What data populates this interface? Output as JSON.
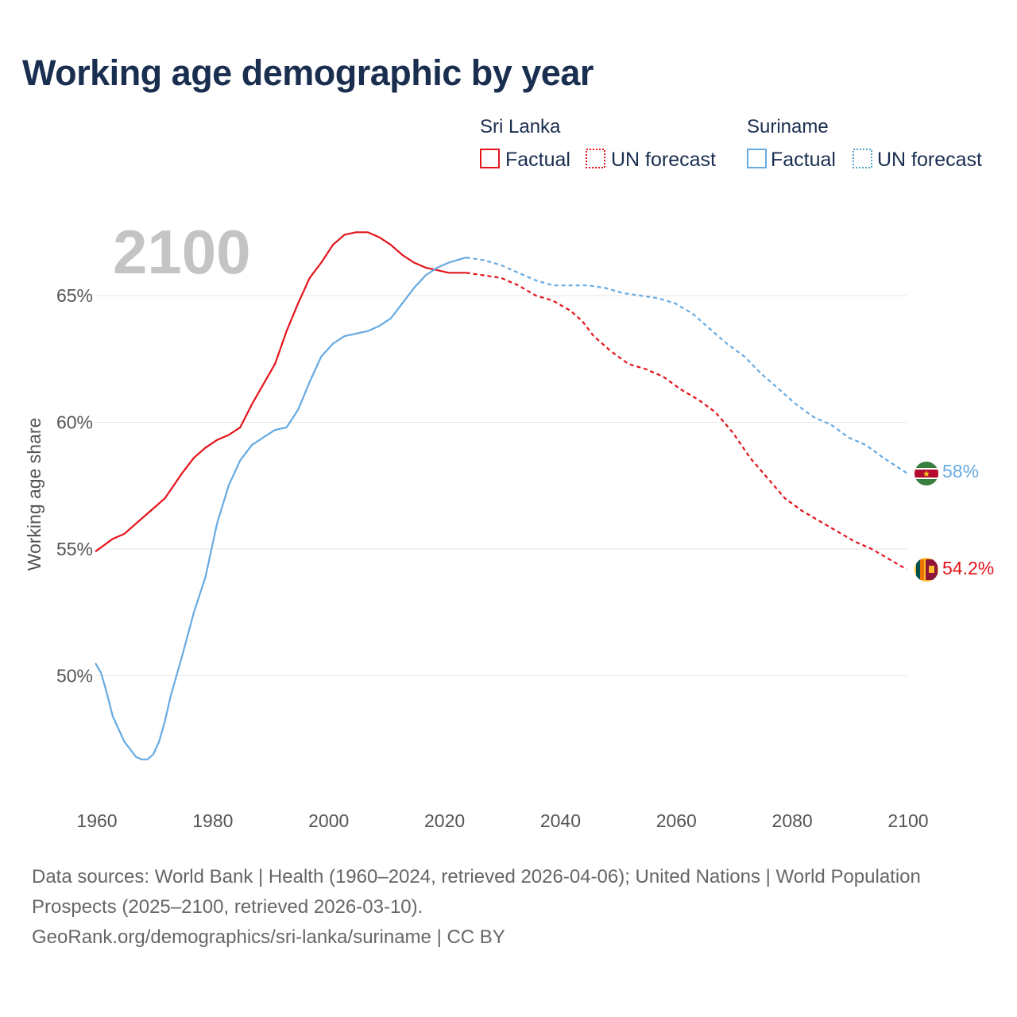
{
  "title": "Working age demographic by year",
  "year_label": "2100",
  "legend": {
    "groups": [
      {
        "country": "Sri Lanka",
        "factual": "Factual",
        "forecast": "UN forecast",
        "color": "#e3141b"
      },
      {
        "country": "Suriname",
        "factual": "Factual",
        "forecast": "UN forecast",
        "color": "#66aae2"
      }
    ]
  },
  "sources": {
    "line1": "Data sources: World Bank | Health (1960–2024, retrieved 2026-04-06); United Nations | World Population Prospects (2025–2100, retrieved 2026-03-10).",
    "line2": "GeoRank.org/demographics/sri-lanka/suriname | CC BY"
  },
  "chart_data": {
    "type": "line",
    "ylabel": "Working age share",
    "xlabel": "",
    "xlim": [
      1960,
      2104
    ],
    "ylim": [
      45,
      70
    ],
    "x_ticks": [
      1960,
      1980,
      2000,
      2020,
      2040,
      2060,
      2080,
      2100
    ],
    "y_ticks": [
      50,
      55,
      60,
      65
    ],
    "y_tick_labels": [
      "50%",
      "55%",
      "60%",
      "65%"
    ],
    "factual_end": 2024,
    "series": [
      {
        "name": "Sri Lanka",
        "color": "#e3141b",
        "end_label": "54.2%",
        "points": [
          [
            1960,
            54.9
          ],
          [
            1963,
            55.4
          ],
          [
            1965,
            55.6
          ],
          [
            1967,
            56.0
          ],
          [
            1970,
            56.6
          ],
          [
            1972,
            57.0
          ],
          [
            1975,
            58.0
          ],
          [
            1977,
            58.6
          ],
          [
            1979,
            59.0
          ],
          [
            1981,
            59.3
          ],
          [
            1983,
            59.5
          ],
          [
            1985,
            59.8
          ],
          [
            1987,
            60.7
          ],
          [
            1989,
            61.5
          ],
          [
            1991,
            62.3
          ],
          [
            1993,
            63.6
          ],
          [
            1995,
            64.7
          ],
          [
            1997,
            65.7
          ],
          [
            1999,
            66.3
          ],
          [
            2001,
            67.0
          ],
          [
            2003,
            67.4
          ],
          [
            2005,
            67.5
          ],
          [
            2007,
            67.5
          ],
          [
            2009,
            67.3
          ],
          [
            2011,
            67.0
          ],
          [
            2013,
            66.6
          ],
          [
            2015,
            66.3
          ],
          [
            2017,
            66.1
          ],
          [
            2019,
            66.0
          ],
          [
            2021,
            65.9
          ],
          [
            2024,
            65.9
          ],
          [
            2027,
            65.8
          ],
          [
            2030,
            65.7
          ],
          [
            2033,
            65.4
          ],
          [
            2036,
            65.0
          ],
          [
            2039,
            64.8
          ],
          [
            2042,
            64.4
          ],
          [
            2044,
            64.0
          ],
          [
            2046,
            63.4
          ],
          [
            2049,
            62.8
          ],
          [
            2052,
            62.3
          ],
          [
            2055,
            62.1
          ],
          [
            2058,
            61.8
          ],
          [
            2061,
            61.3
          ],
          [
            2064,
            60.9
          ],
          [
            2067,
            60.4
          ],
          [
            2070,
            59.6
          ],
          [
            2073,
            58.6
          ],
          [
            2076,
            57.8
          ],
          [
            2079,
            57.0
          ],
          [
            2082,
            56.5
          ],
          [
            2085,
            56.1
          ],
          [
            2088,
            55.7
          ],
          [
            2091,
            55.3
          ],
          [
            2094,
            55.0
          ],
          [
            2097,
            54.6
          ],
          [
            2100,
            54.2
          ]
        ]
      },
      {
        "name": "Suriname",
        "color": "#66aae2",
        "end_label": "58%",
        "points": [
          [
            1960,
            50.5
          ],
          [
            1961,
            50.1
          ],
          [
            1962,
            49.3
          ],
          [
            1963,
            48.4
          ],
          [
            1964,
            47.9
          ],
          [
            1965,
            47.4
          ],
          [
            1966,
            47.1
          ],
          [
            1967,
            46.8
          ],
          [
            1968,
            46.7
          ],
          [
            1969,
            46.7
          ],
          [
            1970,
            46.9
          ],
          [
            1971,
            47.4
          ],
          [
            1972,
            48.2
          ],
          [
            1973,
            49.2
          ],
          [
            1975,
            50.8
          ],
          [
            1977,
            52.5
          ],
          [
            1979,
            53.9
          ],
          [
            1981,
            56.0
          ],
          [
            1983,
            57.5
          ],
          [
            1985,
            58.5
          ],
          [
            1987,
            59.1
          ],
          [
            1989,
            59.4
          ],
          [
            1991,
            59.7
          ],
          [
            1993,
            59.8
          ],
          [
            1995,
            60.5
          ],
          [
            1997,
            61.6
          ],
          [
            1999,
            62.6
          ],
          [
            2001,
            63.1
          ],
          [
            2003,
            63.4
          ],
          [
            2005,
            63.5
          ],
          [
            2007,
            63.6
          ],
          [
            2009,
            63.8
          ],
          [
            2011,
            64.1
          ],
          [
            2013,
            64.7
          ],
          [
            2015,
            65.3
          ],
          [
            2017,
            65.8
          ],
          [
            2019,
            66.1
          ],
          [
            2021,
            66.3
          ],
          [
            2024,
            66.5
          ],
          [
            2027,
            66.4
          ],
          [
            2030,
            66.2
          ],
          [
            2033,
            65.9
          ],
          [
            2036,
            65.6
          ],
          [
            2039,
            65.4
          ],
          [
            2042,
            65.4
          ],
          [
            2045,
            65.4
          ],
          [
            2048,
            65.3
          ],
          [
            2051,
            65.1
          ],
          [
            2054,
            65.0
          ],
          [
            2057,
            64.9
          ],
          [
            2060,
            64.7
          ],
          [
            2063,
            64.3
          ],
          [
            2066,
            63.7
          ],
          [
            2069,
            63.1
          ],
          [
            2072,
            62.6
          ],
          [
            2075,
            61.9
          ],
          [
            2078,
            61.3
          ],
          [
            2081,
            60.7
          ],
          [
            2084,
            60.2
          ],
          [
            2087,
            59.9
          ],
          [
            2090,
            59.4
          ],
          [
            2093,
            59.1
          ],
          [
            2096,
            58.6
          ],
          [
            2100,
            58.0
          ]
        ]
      }
    ]
  }
}
